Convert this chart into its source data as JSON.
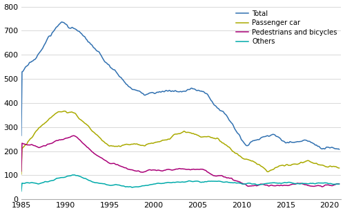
{
  "legend": [
    "Total",
    "Passenger car",
    "Pedestrians and bicycles",
    "Others"
  ],
  "colors": {
    "Total": "#3070B0",
    "Passenger car": "#AAAA00",
    "Pedestrians and bicycles": "#AA0077",
    "Others": "#00AAAA"
  },
  "ylim": [
    0,
    800
  ],
  "yticks": [
    0,
    100,
    200,
    300,
    400,
    500,
    600,
    700,
    800
  ],
  "xticks": [
    1985,
    1990,
    1995,
    2000,
    2005,
    2010,
    2015,
    2020
  ],
  "xlim_start": 1985,
  "xlim_end": 2021.25,
  "linewidth": 1.1,
  "background": "#ffffff",
  "grid_color": "#d8d8d8"
}
